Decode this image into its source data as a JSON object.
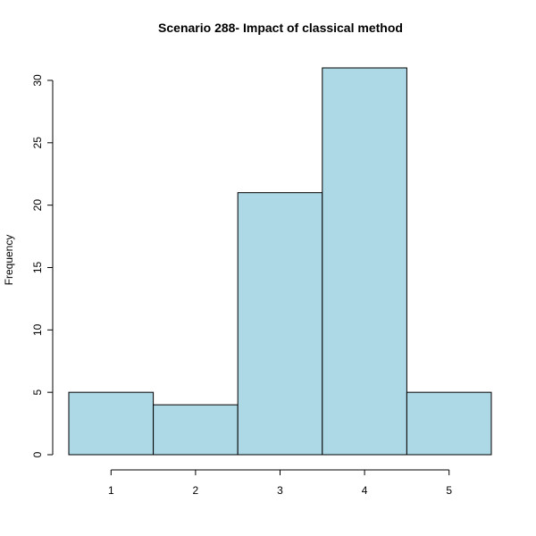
{
  "chart_data": {
    "type": "bar",
    "title": "Scenario 288- Impact of classical method",
    "xlabel": "",
    "ylabel": "Frequency",
    "categories": [
      "1",
      "2",
      "3",
      "4",
      "5"
    ],
    "x": [
      1,
      2,
      3,
      4,
      5
    ],
    "values": [
      5,
      4,
      21,
      31,
      5
    ],
    "xlim": [
      0.5,
      5.5
    ],
    "ylim": [
      0,
      31
    ],
    "x_ticks": [
      "1",
      "2",
      "3",
      "4",
      "5"
    ],
    "y_ticks": [
      "0",
      "5",
      "10",
      "15",
      "20",
      "25",
      "30"
    ],
    "bar_color": "#ADD8E6",
    "border_color": "#000000",
    "grid": false,
    "legend": "none"
  }
}
